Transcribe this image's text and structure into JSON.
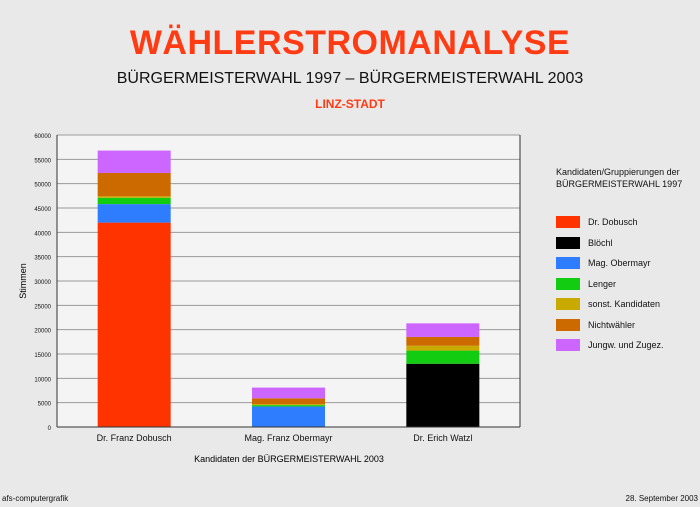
{
  "header": {
    "title": "WÄHLERSTROMANALYSE",
    "subtitle": "BÜRGERMEISTERWAHL 1997 – BÜRGERMEISTERWAHL 2003",
    "region": "LINZ-STADT"
  },
  "footer": {
    "left": "afs-computergrafik",
    "right": "28. September 2003"
  },
  "legend": {
    "title_line1": "Kandidaten/Gruppierungen der",
    "title_line2": "BÜRGERMEISTERWAHL  1997"
  },
  "chart_data": {
    "type": "bar",
    "stacked": true,
    "categories": [
      "Dr. Franz Dobusch",
      "Mag. Franz Obermayr",
      "Dr. Erich Watzl"
    ],
    "xlabel": "Kandidaten der BÜRGERMEISTERWAHL 2003",
    "ylabel": "Stimmen",
    "ylim": [
      0,
      60000
    ],
    "yticks": [
      0,
      5000,
      10000,
      15000,
      20000,
      25000,
      30000,
      35000,
      40000,
      45000,
      50000,
      55000,
      60000
    ],
    "grid": true,
    "legend_position": "right",
    "series": [
      {
        "name": "Dr. Dobusch",
        "color": "#ff3300",
        "values": [
          42000,
          0,
          0
        ]
      },
      {
        "name": "Blöchl",
        "color": "#000000",
        "values": [
          0,
          0,
          13000
        ]
      },
      {
        "name": "Mag. Obermayr",
        "color": "#2f7dff",
        "values": [
          3800,
          4200,
          0
        ]
      },
      {
        "name": "Lenger",
        "color": "#11cc11",
        "values": [
          1300,
          300,
          2700
        ]
      },
      {
        "name": "sonst. Kandidaten",
        "color": "#c8aa00",
        "values": [
          300,
          200,
          1000
        ]
      },
      {
        "name": "Nichtwähler",
        "color": "#cc6a00",
        "values": [
          4800,
          1200,
          1800
        ]
      },
      {
        "name": "Jungw. und Zugez.",
        "color": "#cc66ff",
        "values": [
          4600,
          2200,
          2800
        ]
      }
    ]
  }
}
